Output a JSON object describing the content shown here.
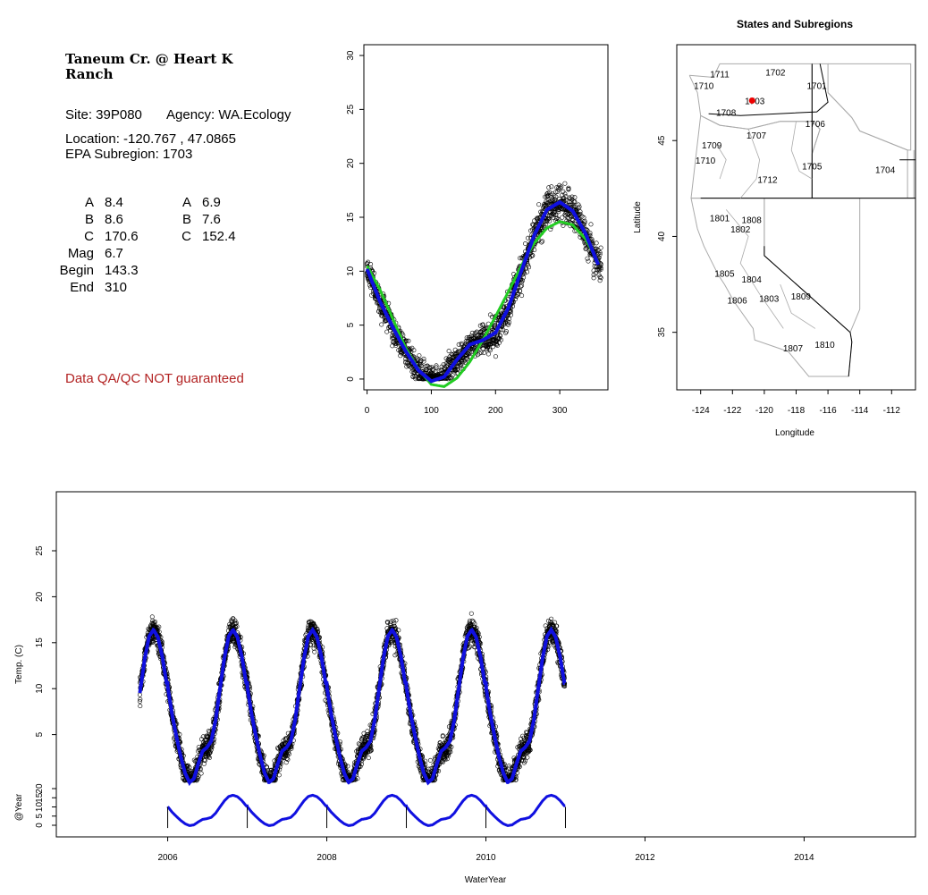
{
  "site": {
    "title_lines": [
      "Taneum Cr. @ Heart K",
      "Ranch"
    ],
    "site_line": "Site: 39P080",
    "agency_line": "Agency: WA.Ecology",
    "location_line": "Location: -120.767 , 47.0865",
    "subregion_line": "EPA Subregion: 1703",
    "params_left": [
      {
        "label": "A",
        "value": "8.4"
      },
      {
        "label": "B",
        "value": "8.6"
      },
      {
        "label": "C",
        "value": "170.6"
      },
      {
        "label": "Mag",
        "value": "6.7"
      },
      {
        "label": "Begin",
        "value": "143.3"
      },
      {
        "label": "End",
        "value": "310"
      }
    ],
    "params_right": [
      {
        "label": "A",
        "value": "6.9"
      },
      {
        "label": "B",
        "value": "7.6"
      },
      {
        "label": "C",
        "value": "152.4"
      }
    ],
    "warning": "Data QA/QC NOT guaranteed"
  },
  "colors": {
    "fit_blue": "#1010e0",
    "fit_green": "#22cc22",
    "point": "#000000",
    "site_marker": "#ee0000",
    "warning": "#b22222",
    "map_lines": "#aaaaaa"
  },
  "chart_data": [
    {
      "type": "scatter",
      "title": "",
      "xlabel": "",
      "ylabel": "",
      "xlim": [
        -5,
        375
      ],
      "ylim": [
        -1,
        31
      ],
      "x_ticks": [
        0,
        100,
        200,
        300
      ],
      "y_ticks": [
        0,
        5,
        10,
        15,
        20,
        25,
        30
      ],
      "series": [
        {
          "role": "observations_day_of_water_year",
          "style": "open-circles"
        },
        {
          "role": "harmonic_fit",
          "color": "#1010e0",
          "x": [
            0,
            20,
            40,
            60,
            80,
            100,
            120,
            140,
            160,
            180,
            200,
            220,
            240,
            260,
            280,
            300,
            320,
            340,
            360
          ],
          "y": [
            10.2,
            7.2,
            4.8,
            2.6,
            0.8,
            -0.2,
            0.2,
            1.8,
            3.2,
            3.6,
            4.3,
            6.6,
            10.0,
            13.3,
            15.7,
            16.4,
            15.6,
            13.5,
            10.6
          ]
        },
        {
          "role": "sine_fit",
          "color": "#22cc22",
          "x": [
            0,
            20,
            40,
            60,
            80,
            100,
            120,
            140,
            160,
            180,
            200,
            220,
            240,
            260,
            280,
            300,
            320,
            340,
            360
          ],
          "y": [
            10.5,
            8.3,
            5.6,
            2.9,
            0.9,
            -0.5,
            -0.7,
            0.1,
            1.6,
            3.6,
            5.8,
            8.1,
            10.5,
            12.6,
            14.0,
            14.6,
            14.3,
            13.0,
            10.8
          ]
        }
      ]
    },
    {
      "type": "map",
      "title": "States and Subregions",
      "xlabel": "Longitude",
      "ylabel": "Latitude",
      "xlim": [
        -125.5,
        -110.5
      ],
      "ylim": [
        32,
        50
      ],
      "x_ticks": [
        -124,
        -122,
        -120,
        -118,
        -116,
        -114,
        -112
      ],
      "y_ticks": [
        35,
        40,
        45
      ],
      "site": {
        "lon": -120.767,
        "lat": 47.0865
      },
      "region_labels": [
        {
          "text": "1711",
          "lon": -122.8,
          "lat": 48.3
        },
        {
          "text": "1702",
          "lon": -119.3,
          "lat": 48.4
        },
        {
          "text": "1710",
          "lon": -123.8,
          "lat": 47.7
        },
        {
          "text": "1701",
          "lon": -116.7,
          "lat": 47.7
        },
        {
          "text": "1703",
          "lon": -120.6,
          "lat": 46.9
        },
        {
          "text": "1708",
          "lon": -122.4,
          "lat": 46.3
        },
        {
          "text": "1706",
          "lon": -116.8,
          "lat": 45.7
        },
        {
          "text": "1707",
          "lon": -120.5,
          "lat": 45.1
        },
        {
          "text": "1709",
          "lon": -123.3,
          "lat": 44.6
        },
        {
          "text": "1710",
          "lon": -123.7,
          "lat": 43.8
        },
        {
          "text": "1705",
          "lon": -117.0,
          "lat": 43.5
        },
        {
          "text": "1704",
          "lon": -112.4,
          "lat": 43.3
        },
        {
          "text": "1712",
          "lon": -119.8,
          "lat": 42.8
        },
        {
          "text": "1801",
          "lon": -122.8,
          "lat": 40.8
        },
        {
          "text": "1808",
          "lon": -120.8,
          "lat": 40.7
        },
        {
          "text": "1802",
          "lon": -121.5,
          "lat": 40.2
        },
        {
          "text": "1805",
          "lon": -122.5,
          "lat": 37.9
        },
        {
          "text": "1804",
          "lon": -120.8,
          "lat": 37.6
        },
        {
          "text": "1806",
          "lon": -121.7,
          "lat": 36.5
        },
        {
          "text": "1803",
          "lon": -119.7,
          "lat": 36.6
        },
        {
          "text": "1809",
          "lon": -117.7,
          "lat": 36.7
        },
        {
          "text": "1807",
          "lon": -118.2,
          "lat": 34.0
        },
        {
          "text": "1810",
          "lon": -116.2,
          "lat": 34.2
        }
      ]
    },
    {
      "type": "scatter",
      "title": "",
      "xlabel": "WaterYear",
      "ylabel": "Temp. (C)",
      "xlim": [
        2004.6,
        2015.4
      ],
      "ylim": [
        -1,
        31
      ],
      "x_ticks": [
        2006,
        2008,
        2010,
        2012,
        2014
      ],
      "y_ticks": [
        5,
        10,
        15,
        20,
        25
      ],
      "water_years": [
        2006,
        2007,
        2008,
        2009,
        2010,
        2011
      ],
      "data_start": 2005.65,
      "data_end": 2010.99,
      "fit_period_peak": 16.4,
      "fit_period_min": 0.0
    },
    {
      "type": "line",
      "ylabel": "@Year",
      "y_ticks": [
        0,
        5,
        10,
        15,
        20
      ],
      "x_range": [
        2006.0,
        2011.0
      ],
      "year_markers": [
        2006,
        2007,
        2008,
        2009,
        2010,
        2011
      ]
    }
  ]
}
